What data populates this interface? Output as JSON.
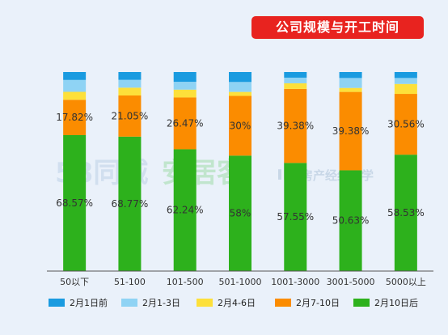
{
  "title": "公司规模与开工时间",
  "colors": {
    "background": "#eaf1fa",
    "title_badge": "#e8231f",
    "axis": "#555555"
  },
  "watermarks": {
    "left": "58同城",
    "middle": "安居客",
    "right": "房产经纪大学"
  },
  "chart_data": {
    "type": "bar",
    "stacked": true,
    "normalized": true,
    "categories": [
      "50以下",
      "51-100",
      "101-500",
      "501-1000",
      "1001-3000",
      "3001-5000",
      "5000以上"
    ],
    "series": [
      {
        "name": "2月10日后",
        "color": "#2db11c",
        "values": [
          68.57,
          68.77,
          62.24,
          58,
          57.55,
          50.63,
          58.53
        ]
      },
      {
        "name": "2月7-10日",
        "color": "#fb8c00",
        "values": [
          17.82,
          21.05,
          26.47,
          30,
          39.38,
          39.38,
          30.56
        ]
      },
      {
        "name": "2月4-6日",
        "color": "#fde03a",
        "values": [
          4,
          4,
          4,
          2,
          3,
          2,
          5
        ]
      },
      {
        "name": "2月1-3日",
        "color": "#8fd3f4",
        "values": [
          6,
          4,
          4,
          5,
          3,
          5,
          3
        ]
      },
      {
        "name": "2月1日前",
        "color": "#1a9be0",
        "values": [
          4,
          4,
          5,
          5,
          3,
          3,
          3
        ]
      }
    ],
    "data_labels": {
      "2月10日后": [
        "68.57%",
        "68.77%",
        "62.24%",
        "58%",
        "57.55%",
        "50.63%",
        "58.53%"
      ],
      "2月7-10日": [
        "17.82%",
        "21.05%",
        "26.47%",
        "30%",
        "39.38%",
        "39.38%",
        "30.56%"
      ]
    },
    "legend": {
      "position": "bottom",
      "order": [
        "2月1日前",
        "2月1-3日",
        "2月4-6日",
        "2月7-10日",
        "2月10日后"
      ]
    },
    "ylim": [
      0,
      100
    ],
    "grid": false
  }
}
